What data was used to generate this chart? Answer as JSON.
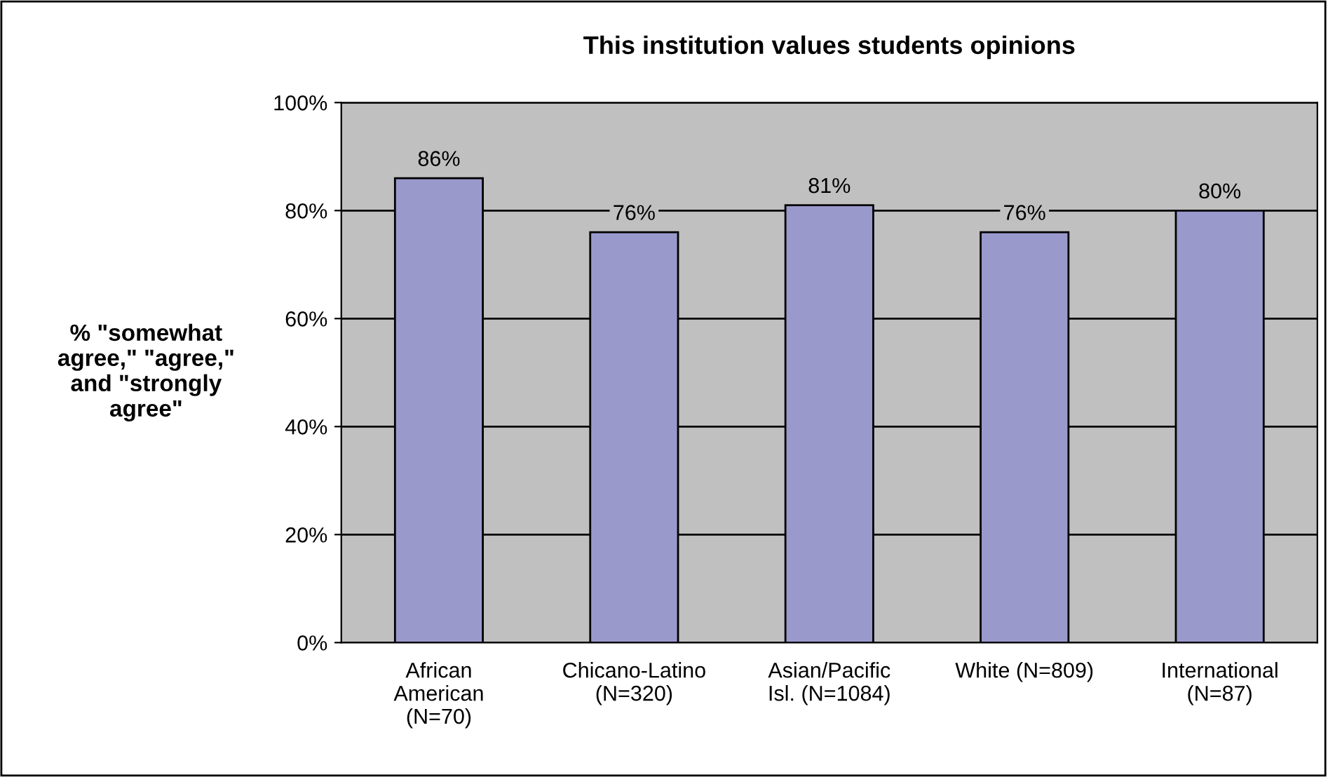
{
  "chart_data": {
    "type": "bar",
    "title": "This institution values students opinions",
    "ylabel": "% \"somewhat\nagree,\" \"agree,\"\nand \"strongly\nagree\"",
    "categories": [
      "African\nAmerican\n(N=70)",
      "Chicano-Latino\n(N=320)",
      "Asian/Pacific\nIsl. (N=1084)",
      "White (N=809)",
      "International\n(N=87)"
    ],
    "values": [
      86,
      76,
      81,
      76,
      80
    ],
    "value_labels": [
      "86%",
      "76%",
      "81%",
      "76%",
      "80%"
    ],
    "color": "#9999cc",
    "ylim": [
      0,
      100
    ],
    "yticks": [
      {
        "value": 0,
        "label": "0%"
      },
      {
        "value": 20,
        "label": "20%"
      },
      {
        "value": 40,
        "label": "40%"
      },
      {
        "value": 60,
        "label": "60%"
      },
      {
        "value": 80,
        "label": "80%"
      },
      {
        "value": 100,
        "label": "100%"
      }
    ],
    "grid": "y"
  }
}
